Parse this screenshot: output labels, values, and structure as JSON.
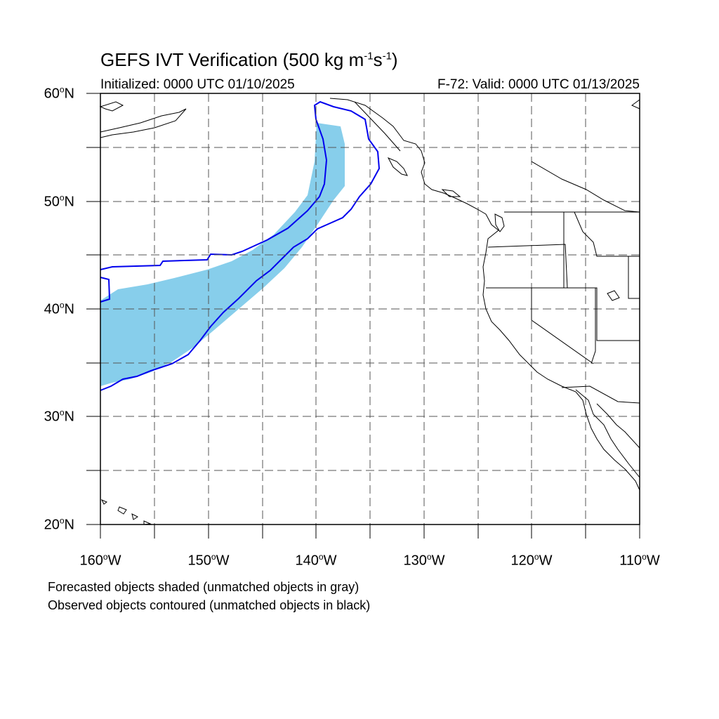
{
  "header": {
    "title": "GEFS IVT Verification (500 kg m",
    "title_exp1": "-1",
    "title_mid": "s",
    "title_exp2": "-1",
    "title_end": ")",
    "initialized": "Initialized: 0000 UTC 01/10/2025",
    "valid": "F-72: Valid: 0000 UTC 01/13/2025"
  },
  "axes": {
    "lat_labels": [
      {
        "num": "60",
        "hem": "N"
      },
      {
        "num": "50",
        "hem": "N"
      },
      {
        "num": "40",
        "hem": "N"
      },
      {
        "num": "30",
        "hem": "N"
      },
      {
        "num": "20",
        "hem": "N"
      }
    ],
    "lon_labels": [
      {
        "num": "160",
        "hem": "W"
      },
      {
        "num": "150",
        "hem": "W"
      },
      {
        "num": "140",
        "hem": "W"
      },
      {
        "num": "130",
        "hem": "W"
      },
      {
        "num": "120",
        "hem": "W"
      },
      {
        "num": "110",
        "hem": "W"
      }
    ],
    "deg": "o"
  },
  "legend": {
    "forecast_note": "Forecasted objects shaded (unmatched objects in gray)",
    "observed_note": "Observed objects contoured (unmatched objects in black)"
  },
  "colors": {
    "forecast_fill": "#87ceeb",
    "observed_contour": "#0000ee",
    "coastline": "#000000",
    "grid": "#555555"
  },
  "map_extent": {
    "lon_min": -160,
    "lon_max": -110,
    "lat_min": 20,
    "lat_max": 60
  }
}
